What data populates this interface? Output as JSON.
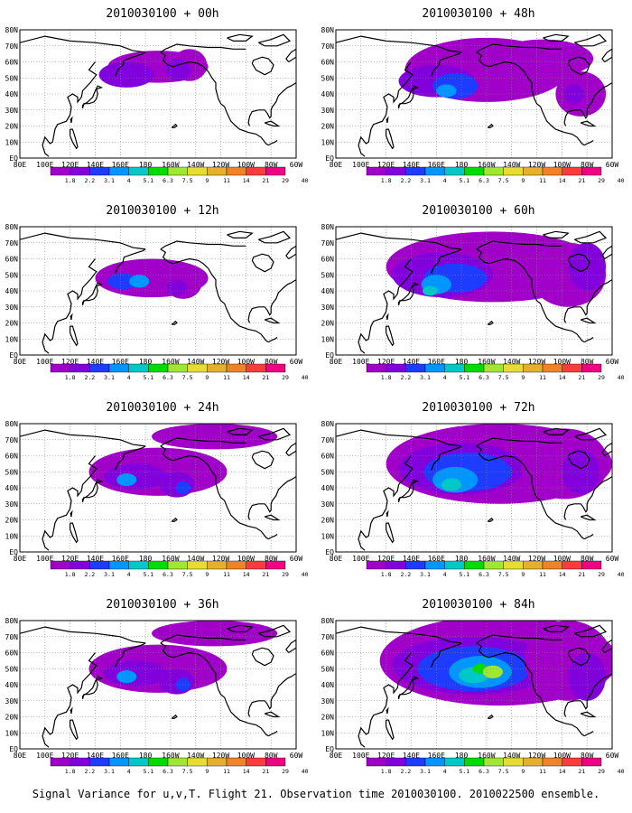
{
  "panels": [
    {
      "title": "2010030100 + 00h",
      "col": 0,
      "row": 0,
      "level": 0
    },
    {
      "title": "2010030100 + 48h",
      "col": 1,
      "row": 0,
      "level": 3
    },
    {
      "title": "2010030100 + 12h",
      "col": 0,
      "row": 1,
      "level": 1
    },
    {
      "title": "2010030100 + 60h",
      "col": 1,
      "row": 1,
      "level": 4
    },
    {
      "title": "2010030100 + 24h",
      "col": 0,
      "row": 2,
      "level": 2
    },
    {
      "title": "2010030100 + 72h",
      "col": 1,
      "row": 2,
      "level": 5
    },
    {
      "title": "2010030100 + 36h",
      "col": 0,
      "row": 3,
      "level": 2
    },
    {
      "title": "2010030100 + 84h",
      "col": 1,
      "row": 3,
      "level": 6
    }
  ],
  "lat_labels": [
    "80N",
    "70N",
    "60N",
    "50N",
    "40N",
    "30N",
    "20N",
    "10N",
    "EQ"
  ],
  "lon_labels": [
    "80E",
    "100E",
    "120E",
    "140E",
    "160E",
    "180",
    "160W",
    "140W",
    "120W",
    "100W",
    "80W",
    "60W"
  ],
  "colorbar": {
    "labels": [
      "1.8",
      "2.2",
      "3.1",
      "4",
      "5.1",
      "6.3",
      "7.5",
      "9",
      "11",
      "14",
      "21",
      "29",
      "40"
    ],
    "colors": [
      "#a000c8",
      "#8200dc",
      "#1e3cff",
      "#0096ff",
      "#00c8c8",
      "#00dc00",
      "#a0e632",
      "#e6dc32",
      "#e6af2d",
      "#f08228",
      "#fa3c3c",
      "#f00082"
    ]
  },
  "caption": "Signal Variance for u,v,T. Flight 21. Observation time 2010030100. 2010022500 ensemble."
}
